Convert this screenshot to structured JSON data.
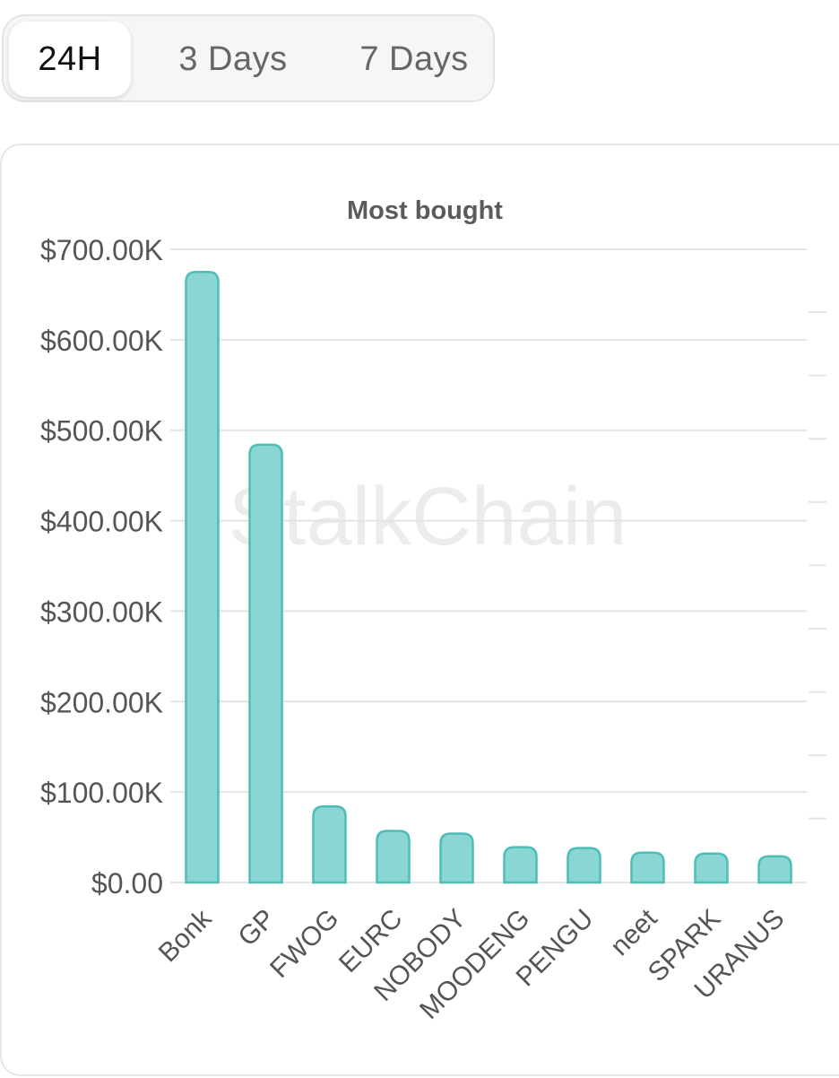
{
  "tabs": [
    {
      "label": "24H",
      "active": true
    },
    {
      "label": "3 Days",
      "active": false
    },
    {
      "label": "7 Days",
      "active": false
    }
  ],
  "watermark": "StalkChain",
  "chart_data": {
    "type": "bar",
    "title": "Most bought",
    "xlabel": "",
    "ylabel": "",
    "categories": [
      "Bonk",
      "GP",
      "FWOG",
      "EURC",
      "NOBODY",
      "MOODENG",
      "PENGU",
      "neet",
      "SPARK",
      "URANUS"
    ],
    "values": [
      675000,
      484000,
      84000,
      57000,
      54000,
      39000,
      38000,
      33000,
      32000,
      29000
    ],
    "ylim": [
      0,
      700000
    ],
    "yticks": [
      0,
      100000,
      200000,
      300000,
      400000,
      500000,
      600000,
      700000
    ],
    "ytick_labels": [
      "$0.00",
      "$100.00K",
      "$200.00K",
      "$300.00K",
      "$400.00K",
      "$500.00K",
      "$600.00K",
      "$700.00K"
    ],
    "grid": true,
    "colors": {
      "bar_fill": "#8ad6d3",
      "bar_stroke": "#4fbdb7",
      "grid": "#e4e4e4",
      "text": "#555555",
      "title": "#5b5b5b",
      "watermark": "#ececec"
    }
  }
}
